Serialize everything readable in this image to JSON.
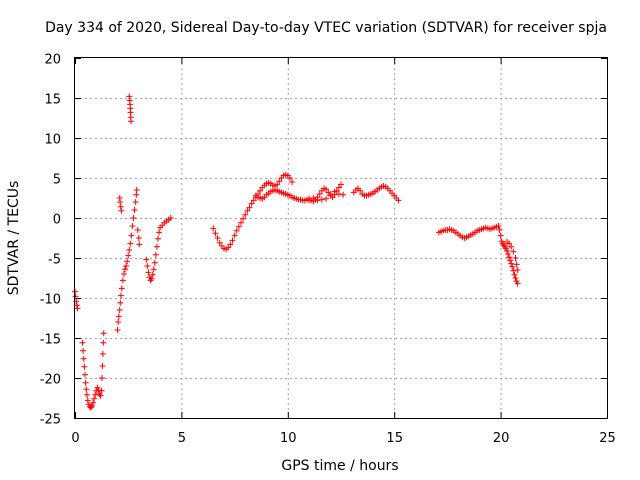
{
  "chart_data": {
    "type": "scatter",
    "title": "Day 334 of 2020, Sidereal Day-to-day VTEC variation (SDTVAR) for receiver spja",
    "xlabel": "GPS time / hours",
    "ylabel": "SDTVAR / TECUs",
    "xlim": [
      0,
      25
    ],
    "ylim": [
      -25,
      20
    ],
    "xticks": [
      0,
      5,
      10,
      15,
      20,
      25
    ],
    "yticks": [
      -25,
      -20,
      -15,
      -10,
      -5,
      0,
      5,
      10,
      15,
      20
    ],
    "grid": true,
    "marker": "plus",
    "colors": {
      "series": "#ff0000",
      "grid": "#a0a0a0",
      "axis": "#000000"
    },
    "series": [
      {
        "name": "spja",
        "points": [
          [
            0.0,
            -9.2
          ],
          [
            0.03,
            -9.8
          ],
          [
            0.06,
            -10.4
          ],
          [
            0.09,
            -10.9
          ],
          [
            0.12,
            -11.3
          ],
          [
            0.35,
            -15.6
          ],
          [
            0.38,
            -16.6
          ],
          [
            0.41,
            -17.6
          ],
          [
            0.44,
            -18.6
          ],
          [
            0.47,
            -19.6
          ],
          [
            0.5,
            -20.6
          ],
          [
            0.53,
            -21.4
          ],
          [
            0.56,
            -22.1
          ],
          [
            0.6,
            -22.8
          ],
          [
            0.65,
            -23.3
          ],
          [
            0.7,
            -23.6
          ],
          [
            0.75,
            -23.7
          ],
          [
            0.8,
            -23.5
          ],
          [
            0.85,
            -23.1
          ],
          [
            0.9,
            -22.6
          ],
          [
            0.95,
            -22.1
          ],
          [
            1.0,
            -21.6
          ],
          [
            1.05,
            -21.2
          ],
          [
            1.1,
            -21.5
          ],
          [
            1.15,
            -22.0
          ],
          [
            1.2,
            -22.2
          ],
          [
            1.25,
            -21.6
          ],
          [
            1.27,
            -20.0
          ],
          [
            1.29,
            -18.5
          ],
          [
            1.31,
            -17.0
          ],
          [
            1.33,
            -15.6
          ],
          [
            1.35,
            -14.4
          ],
          [
            2.0,
            -14.0
          ],
          [
            2.03,
            -13.0
          ],
          [
            2.06,
            -12.3
          ],
          [
            2.1,
            -11.5
          ],
          [
            2.13,
            -10.6
          ],
          [
            2.16,
            -9.7
          ],
          [
            2.2,
            -8.8
          ],
          [
            2.25,
            -7.8
          ],
          [
            2.3,
            -7.0
          ],
          [
            2.35,
            -6.4
          ],
          [
            2.4,
            -6.0
          ],
          [
            2.45,
            -5.4
          ],
          [
            2.5,
            -4.7
          ],
          [
            2.55,
            -4.0
          ],
          [
            2.6,
            -3.2
          ],
          [
            2.65,
            -2.2
          ],
          [
            2.7,
            -1.0
          ],
          [
            2.75,
            0.0
          ],
          [
            2.8,
            1.0
          ],
          [
            2.85,
            2.0
          ],
          [
            2.88,
            2.9
          ],
          [
            2.9,
            3.5
          ],
          [
            2.1,
            2.5
          ],
          [
            2.12,
            2.0
          ],
          [
            2.15,
            1.4
          ],
          [
            2.18,
            0.9
          ],
          [
            2.55,
            15.2
          ],
          [
            2.57,
            14.7
          ],
          [
            2.59,
            14.2
          ],
          [
            2.6,
            13.7
          ],
          [
            2.61,
            13.2
          ],
          [
            2.62,
            12.6
          ],
          [
            2.63,
            12.1
          ],
          [
            2.95,
            -1.5
          ],
          [
            3.0,
            -2.5
          ],
          [
            3.02,
            -3.3
          ],
          [
            3.35,
            -5.2
          ],
          [
            3.4,
            -6.0
          ],
          [
            3.45,
            -6.8
          ],
          [
            3.5,
            -7.4
          ],
          [
            3.55,
            -7.8
          ],
          [
            3.6,
            -7.6
          ],
          [
            3.65,
            -7.1
          ],
          [
            3.7,
            -6.4
          ],
          [
            3.75,
            -5.6
          ],
          [
            3.8,
            -4.6
          ],
          [
            3.85,
            -3.6
          ],
          [
            3.9,
            -2.6
          ],
          [
            3.95,
            -1.8
          ],
          [
            4.0,
            -1.2
          ],
          [
            4.1,
            -0.9
          ],
          [
            4.2,
            -0.6
          ],
          [
            4.3,
            -0.4
          ],
          [
            4.4,
            -0.2
          ],
          [
            4.5,
            0.0
          ],
          [
            6.5,
            -1.3
          ],
          [
            6.6,
            -1.9
          ],
          [
            6.7,
            -2.5
          ],
          [
            6.8,
            -3.1
          ],
          [
            6.9,
            -3.5
          ],
          [
            7.0,
            -3.8
          ],
          [
            7.1,
            -3.9
          ],
          [
            7.2,
            -3.7
          ],
          [
            7.3,
            -3.3
          ],
          [
            7.4,
            -2.8
          ],
          [
            7.5,
            -2.2
          ],
          [
            7.6,
            -1.6
          ],
          [
            7.7,
            -1.1
          ],
          [
            7.8,
            -0.6
          ],
          [
            7.9,
            -0.1
          ],
          [
            8.0,
            0.4
          ],
          [
            8.1,
            0.9
          ],
          [
            8.2,
            1.3
          ],
          [
            8.3,
            1.8
          ],
          [
            8.4,
            2.2
          ],
          [
            8.5,
            2.6
          ],
          [
            8.6,
            3.0
          ],
          [
            8.7,
            3.4
          ],
          [
            8.8,
            3.8
          ],
          [
            8.9,
            4.1
          ],
          [
            9.0,
            4.3
          ],
          [
            9.1,
            4.4
          ],
          [
            9.2,
            4.3
          ],
          [
            9.3,
            4.1
          ],
          [
            9.4,
            4.0
          ],
          [
            9.5,
            4.2
          ],
          [
            9.6,
            4.6
          ],
          [
            9.7,
            5.0
          ],
          [
            9.8,
            5.3
          ],
          [
            9.9,
            5.4
          ],
          [
            10.0,
            5.3
          ],
          [
            10.1,
            5.0
          ],
          [
            10.2,
            4.5
          ],
          [
            8.5,
            2.8
          ],
          [
            8.6,
            2.6
          ],
          [
            8.7,
            2.5
          ],
          [
            8.8,
            2.4
          ],
          [
            8.9,
            2.6
          ],
          [
            9.0,
            2.9
          ],
          [
            9.1,
            3.1
          ],
          [
            9.2,
            3.3
          ],
          [
            9.3,
            3.4
          ],
          [
            9.4,
            3.5
          ],
          [
            9.5,
            3.4
          ],
          [
            9.6,
            3.3
          ],
          [
            9.7,
            3.2
          ],
          [
            9.8,
            3.1
          ],
          [
            9.9,
            3.0
          ],
          [
            10.0,
            2.9
          ],
          [
            10.1,
            2.8
          ],
          [
            10.2,
            2.6
          ],
          [
            10.3,
            2.5
          ],
          [
            10.4,
            2.4
          ],
          [
            10.5,
            2.3
          ],
          [
            10.6,
            2.3
          ],
          [
            10.7,
            2.2
          ],
          [
            10.8,
            2.2
          ],
          [
            10.9,
            2.3
          ],
          [
            11.0,
            2.4
          ],
          [
            11.1,
            2.2
          ],
          [
            11.2,
            2.1
          ],
          [
            11.3,
            2.3
          ],
          [
            11.4,
            2.6
          ],
          [
            11.5,
            3.0
          ],
          [
            11.6,
            3.4
          ],
          [
            11.7,
            3.7
          ],
          [
            11.8,
            3.6
          ],
          [
            11.9,
            3.2
          ],
          [
            12.0,
            2.8
          ],
          [
            12.1,
            2.6
          ],
          [
            12.2,
            2.9
          ],
          [
            12.3,
            3.4
          ],
          [
            12.4,
            3.8
          ],
          [
            12.5,
            4.2
          ],
          [
            11.0,
            2.2
          ],
          [
            11.2,
            2.5
          ],
          [
            11.4,
            2.2
          ],
          [
            11.6,
            2.3
          ],
          [
            11.8,
            2.4
          ],
          [
            12.0,
            3.0
          ],
          [
            12.2,
            3.3
          ],
          [
            12.4,
            3.0
          ],
          [
            12.6,
            2.9
          ],
          [
            13.1,
            3.2
          ],
          [
            13.2,
            3.5
          ],
          [
            13.3,
            3.7
          ],
          [
            13.4,
            3.4
          ],
          [
            13.5,
            3.0
          ],
          [
            13.6,
            2.8
          ],
          [
            13.7,
            2.8
          ],
          [
            13.8,
            2.9
          ],
          [
            13.9,
            3.0
          ],
          [
            14.0,
            3.1
          ],
          [
            14.1,
            3.3
          ],
          [
            14.2,
            3.5
          ],
          [
            14.3,
            3.7
          ],
          [
            14.4,
            3.9
          ],
          [
            14.5,
            4.0
          ],
          [
            14.6,
            3.9
          ],
          [
            14.7,
            3.7
          ],
          [
            14.8,
            3.4
          ],
          [
            14.9,
            3.1
          ],
          [
            15.0,
            2.8
          ],
          [
            15.1,
            2.5
          ],
          [
            15.2,
            2.2
          ],
          [
            17.1,
            -1.8
          ],
          [
            17.2,
            -1.7
          ],
          [
            17.3,
            -1.6
          ],
          [
            17.4,
            -1.5
          ],
          [
            17.5,
            -1.5
          ],
          [
            17.6,
            -1.4
          ],
          [
            17.7,
            -1.5
          ],
          [
            17.8,
            -1.6
          ],
          [
            17.9,
            -1.8
          ],
          [
            18.0,
            -2.0
          ],
          [
            18.1,
            -2.2
          ],
          [
            18.2,
            -2.4
          ],
          [
            18.3,
            -2.5
          ],
          [
            18.4,
            -2.4
          ],
          [
            18.5,
            -2.3
          ],
          [
            18.6,
            -2.1
          ],
          [
            18.7,
            -2.0
          ],
          [
            18.8,
            -1.8
          ],
          [
            18.9,
            -1.6
          ],
          [
            19.0,
            -1.5
          ],
          [
            19.1,
            -1.4
          ],
          [
            19.2,
            -1.3
          ],
          [
            19.3,
            -1.2
          ],
          [
            19.4,
            -1.3
          ],
          [
            19.5,
            -1.4
          ],
          [
            19.6,
            -1.3
          ],
          [
            19.7,
            -1.2
          ],
          [
            19.8,
            -1.1
          ],
          [
            19.9,
            -1.0
          ],
          [
            19.95,
            -1.5
          ],
          [
            20.0,
            -2.2
          ],
          [
            20.05,
            -2.9
          ],
          [
            20.1,
            -3.2
          ],
          [
            20.15,
            -3.4
          ],
          [
            20.2,
            -3.6
          ],
          [
            20.25,
            -3.8
          ],
          [
            20.3,
            -4.1
          ],
          [
            20.35,
            -4.5
          ],
          [
            20.4,
            -4.9
          ],
          [
            20.45,
            -5.3
          ],
          [
            20.5,
            -5.7
          ],
          [
            20.55,
            -6.1
          ],
          [
            20.6,
            -6.6
          ],
          [
            20.65,
            -7.1
          ],
          [
            20.7,
            -7.5
          ],
          [
            20.75,
            -7.9
          ],
          [
            20.8,
            -8.2
          ],
          [
            20.3,
            -3.0
          ],
          [
            20.4,
            -3.2
          ],
          [
            20.5,
            -3.6
          ],
          [
            20.6,
            -4.2
          ],
          [
            20.7,
            -5.0
          ],
          [
            20.75,
            -5.8
          ],
          [
            20.8,
            -6.5
          ]
        ]
      }
    ]
  }
}
